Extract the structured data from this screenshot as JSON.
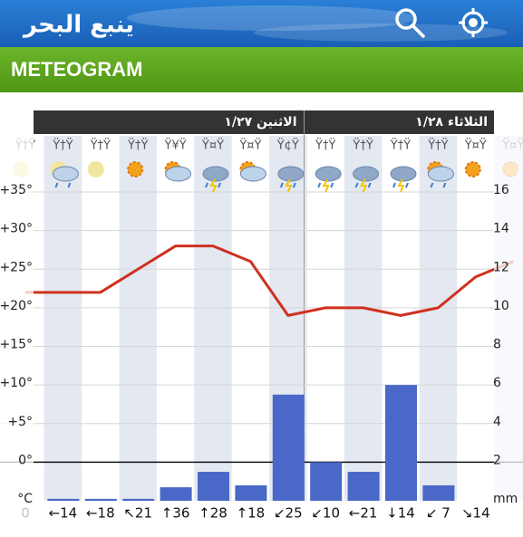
{
  "header": {
    "title": "ينبع البحر"
  },
  "section": {
    "title": "METEOGRAM"
  },
  "chart_data": {
    "type": "meteogram",
    "days": [
      "الاثنين ١/٢٧",
      "الثلاثاء ١/٢٨"
    ],
    "categories": [
      "Ÿ†Ÿ",
      "Ÿ†Ÿ",
      "Ÿ†Ÿ",
      "Ÿ†Ÿ",
      "Ÿ¥Ÿ",
      "Ÿ¤Ÿ",
      "Ÿ¤Ÿ",
      "Ÿ¢Ÿ",
      "Ÿ†Ÿ",
      "Ÿ†Ÿ",
      "Ÿ†Ÿ",
      "Ÿ†Ÿ",
      "Ÿ¤Ÿ",
      "Ÿ¤Ÿ"
    ],
    "temperature": {
      "color": "#d0301f",
      "values": [
        22,
        22,
        22,
        25,
        28,
        28,
        26,
        19,
        20,
        20,
        19,
        20,
        24,
        26
      ],
      "ylim": [
        -5,
        35
      ],
      "yticks": [
        {
          "value": 35,
          "label": "+35°"
        },
        {
          "value": 30,
          "label": "+30°"
        },
        {
          "value": 25,
          "label": "+25°"
        },
        {
          "value": 20,
          "label": "+20°"
        },
        {
          "value": 15,
          "label": "+15°"
        },
        {
          "value": 10,
          "label": "+10°"
        },
        {
          "value": 5,
          "label": "+5°"
        },
        {
          "value": 0,
          "label": "0°"
        },
        {
          "value": -5,
          "label": "°C"
        }
      ]
    },
    "precipitation": {
      "color": "#4a68c8",
      "values": [
        0,
        0.1,
        0.1,
        0.1,
        0.7,
        1.5,
        0.8,
        5.5,
        2.0,
        1.5,
        6.0,
        0.8,
        0,
        0
      ],
      "ylim": [
        0,
        16
      ],
      "yticks": [
        16,
        14,
        12,
        10,
        8,
        6,
        4,
        2,
        {
          "value": 0,
          "label": "mm"
        }
      ]
    },
    "wind": [
      "0",
      "←14",
      "←18",
      "↖21",
      "↑36",
      "↑28",
      "↑18",
      "↙25",
      "↙10",
      "←21",
      "↓14",
      "↙ 7",
      "↘14",
      null
    ],
    "grid": true
  }
}
